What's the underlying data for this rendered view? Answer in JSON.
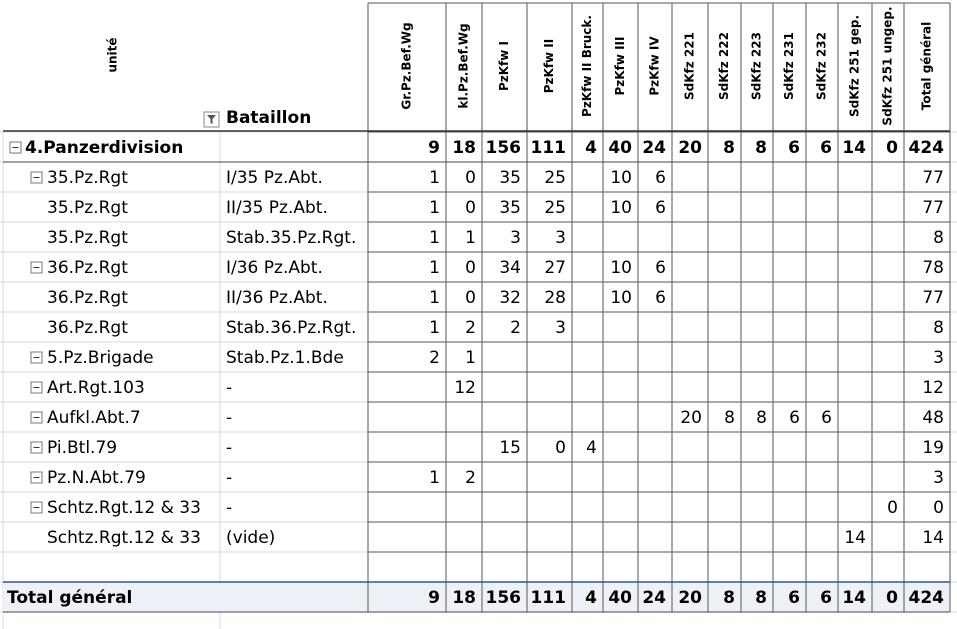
{
  "table": {
    "headers": {
      "unite": "unité",
      "bataillon": "Bataillon",
      "columns": [
        "Gr.Pz.Bef.Wg",
        "kl.Pz.Bef.Wg",
        "PzKfw I",
        "PzKfw II",
        "PzKfw II Bruck.",
        "PzKfw III",
        "PzKfw IV",
        "SdKfz 221",
        "SdKfz 222",
        "SdKfz 223",
        "SdKfz 231",
        "SdKfz 232",
        "SdKfz 251 gep.",
        "SdKfz 251 ungep.",
        "Total général"
      ]
    },
    "rows": [
      {
        "label": "4.Panzerdivision",
        "bataillon": null,
        "toggle": true,
        "bold": true,
        "values": [
          9,
          18,
          156,
          111,
          4,
          40,
          24,
          20,
          8,
          8,
          6,
          6,
          14,
          0,
          424
        ]
      },
      {
        "label": "35.Pz.Rgt",
        "bataillon": "I/35 Pz.Abt.",
        "toggle": true,
        "bold": false,
        "values": [
          1,
          0,
          35,
          25,
          null,
          10,
          6,
          null,
          null,
          null,
          null,
          null,
          null,
          null,
          77
        ]
      },
      {
        "label": "35.Pz.Rgt",
        "bataillon": "II/35 Pz.Abt.",
        "toggle": false,
        "bold": false,
        "values": [
          1,
          0,
          35,
          25,
          null,
          10,
          6,
          null,
          null,
          null,
          null,
          null,
          null,
          null,
          77
        ]
      },
      {
        "label": "35.Pz.Rgt",
        "bataillon": "Stab.35.Pz.Rgt.",
        "toggle": false,
        "bold": false,
        "values": [
          1,
          1,
          3,
          3,
          null,
          null,
          null,
          null,
          null,
          null,
          null,
          null,
          null,
          null,
          8
        ]
      },
      {
        "label": "36.Pz.Rgt",
        "bataillon": "I/36 Pz.Abt.",
        "toggle": true,
        "bold": false,
        "values": [
          1,
          0,
          34,
          27,
          null,
          10,
          6,
          null,
          null,
          null,
          null,
          null,
          null,
          null,
          78
        ]
      },
      {
        "label": "36.Pz.Rgt",
        "bataillon": "II/36 Pz.Abt.",
        "toggle": false,
        "bold": false,
        "values": [
          1,
          0,
          32,
          28,
          null,
          10,
          6,
          null,
          null,
          null,
          null,
          null,
          null,
          null,
          77
        ]
      },
      {
        "label": "36.Pz.Rgt",
        "bataillon": "Stab.36.Pz.Rgt.",
        "toggle": false,
        "bold": false,
        "values": [
          1,
          2,
          2,
          3,
          null,
          null,
          null,
          null,
          null,
          null,
          null,
          null,
          null,
          null,
          8
        ]
      },
      {
        "label": "5.Pz.Brigade",
        "bataillon": "Stab.Pz.1.Bde",
        "toggle": true,
        "bold": false,
        "values": [
          2,
          1,
          null,
          null,
          null,
          null,
          null,
          null,
          null,
          null,
          null,
          null,
          null,
          null,
          3
        ]
      },
      {
        "label": "Art.Rgt.103",
        "bataillon": "-",
        "toggle": true,
        "bold": false,
        "values": [
          null,
          12,
          null,
          null,
          null,
          null,
          null,
          null,
          null,
          null,
          null,
          null,
          null,
          null,
          12
        ]
      },
      {
        "label": "Aufkl.Abt.7",
        "bataillon": "-",
        "toggle": true,
        "bold": false,
        "values": [
          null,
          null,
          null,
          null,
          null,
          null,
          null,
          20,
          8,
          8,
          6,
          6,
          null,
          null,
          48
        ]
      },
      {
        "label": "Pi.Btl.79",
        "bataillon": "-",
        "toggle": true,
        "bold": false,
        "values": [
          null,
          null,
          15,
          0,
          4,
          null,
          null,
          null,
          null,
          null,
          null,
          null,
          null,
          null,
          19
        ]
      },
      {
        "label": "Pz.N.Abt.79",
        "bataillon": "-",
        "toggle": true,
        "bold": false,
        "values": [
          1,
          2,
          null,
          null,
          null,
          null,
          null,
          null,
          null,
          null,
          null,
          null,
          null,
          null,
          3
        ]
      },
      {
        "label": "Schtz.Rgt.12 & 33",
        "bataillon": "-",
        "toggle": true,
        "bold": false,
        "values": [
          null,
          null,
          null,
          null,
          null,
          null,
          null,
          null,
          null,
          null,
          null,
          null,
          null,
          0,
          0
        ]
      },
      {
        "label": "Schtz.Rgt.12 & 33",
        "bataillon": "(vide)",
        "toggle": false,
        "bold": false,
        "values": [
          null,
          null,
          null,
          null,
          null,
          null,
          null,
          null,
          null,
          null,
          null,
          null,
          14,
          null,
          14
        ]
      }
    ],
    "total": {
      "label": "Total général",
      "values": [
        9,
        18,
        156,
        111,
        4,
        40,
        24,
        20,
        8,
        8,
        6,
        6,
        14,
        0,
        424
      ]
    }
  }
}
